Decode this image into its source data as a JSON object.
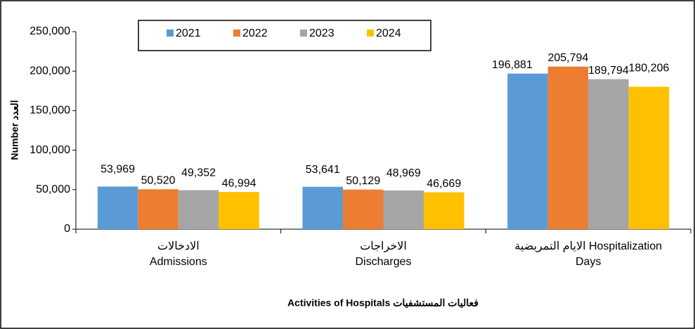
{
  "chart_data": {
    "type": "bar",
    "categories": [
      "الادخالات\nAdmissions",
      "الاخراجات\nDischarges",
      "الايام التمريضية  Hospitalization\nDays"
    ],
    "series": [
      {
        "name": "2021",
        "color": "#5b9bd5",
        "values": [
          53969,
          53641,
          196881
        ],
        "value_labels": [
          "53,969",
          "53,641",
          "196,881"
        ]
      },
      {
        "name": "2022",
        "color": "#ed7d31",
        "values": [
          50520,
          50129,
          205794
        ],
        "value_labels": [
          "50,520",
          "50,129",
          "205,794"
        ]
      },
      {
        "name": "2023",
        "color": "#a5a5a5",
        "values": [
          49352,
          48969,
          189794
        ],
        "value_labels": [
          "49,352",
          "48,969",
          "189,794"
        ]
      },
      {
        "name": "2024",
        "color": "#ffc000",
        "values": [
          46994,
          46669,
          180206
        ],
        "value_labels": [
          "46,994",
          "46,669",
          "180,206"
        ]
      }
    ],
    "ylim": [
      0,
      250000
    ],
    "yticks": [
      0,
      {
        "value": 50000,
        "label": "50,000"
      },
      {
        "value": 100000,
        "label": "100,000"
      },
      {
        "value": 150000,
        "label": "150,000"
      },
      {
        "value": 200000,
        "label": "200,000"
      },
      {
        "value": 250000,
        "label": "250,000"
      }
    ],
    "ylabel": "Number العدد",
    "xlabel": "Activities of Hospitals  فعاليات المستشفيات",
    "legend": "top"
  }
}
